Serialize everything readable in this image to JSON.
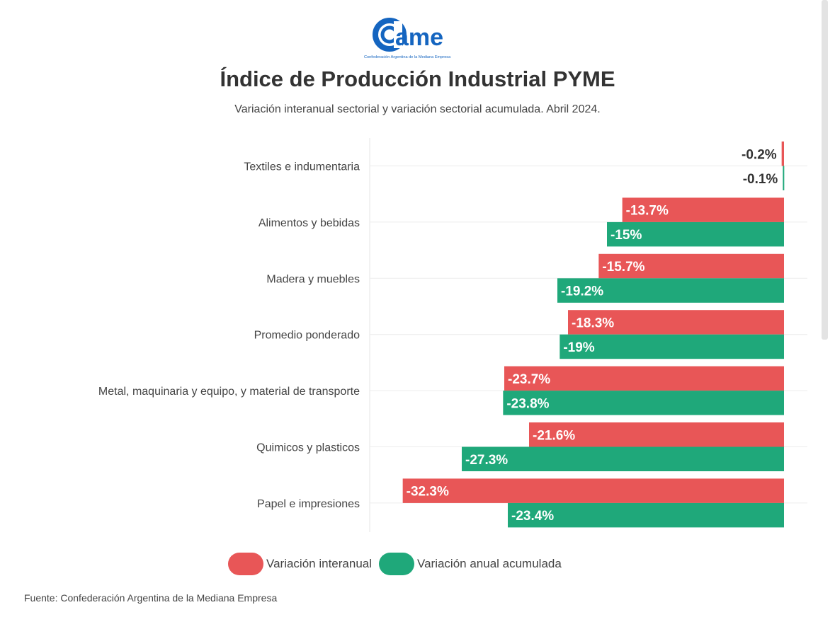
{
  "logo": {
    "text": "came",
    "tagline": "Confederación Argentina de la Mediana Empresa",
    "color": "#1565c0"
  },
  "chart_data": {
    "type": "bar",
    "orientation": "horizontal",
    "title": "Índice de Producción Industrial PYME",
    "subtitle": "Variación interanual sectorial y variación sectorial acumulada. Abril 2024.",
    "categories": [
      "Textiles e indumentaria",
      "Alimentos y bebidas",
      "Madera y muebles",
      "Promedio ponderado",
      "Metal, maquinaria y equipo, y material de transporte",
      "Quimicos y plasticos",
      "Papel e impresiones"
    ],
    "series": [
      {
        "name": "Variación interanual",
        "color": "#e85657",
        "values": [
          -0.2,
          -13.7,
          -15.7,
          -18.3,
          -23.7,
          -21.6,
          -32.3
        ],
        "labels": [
          "-0.2%",
          "-13.7%",
          "-15.7%",
          "-18.3%",
          "-23.7%",
          "-21.6%",
          "-32.3%"
        ]
      },
      {
        "name": "Variación anual acumulada",
        "color": "#1fa87a",
        "values": [
          -0.1,
          -15,
          -19.2,
          -19,
          -23.8,
          -27.3,
          -23.4
        ],
        "labels": [
          "-0.1%",
          "-15%",
          "-19.2%",
          "-19%",
          "-23.8%",
          "-27.3%",
          "-23.4%"
        ]
      }
    ],
    "xlim": [
      -35.1,
      0
    ],
    "grid": true,
    "legend": "bottom"
  },
  "source": "Fuente: Confederación Argentina de la Mediana Empresa"
}
